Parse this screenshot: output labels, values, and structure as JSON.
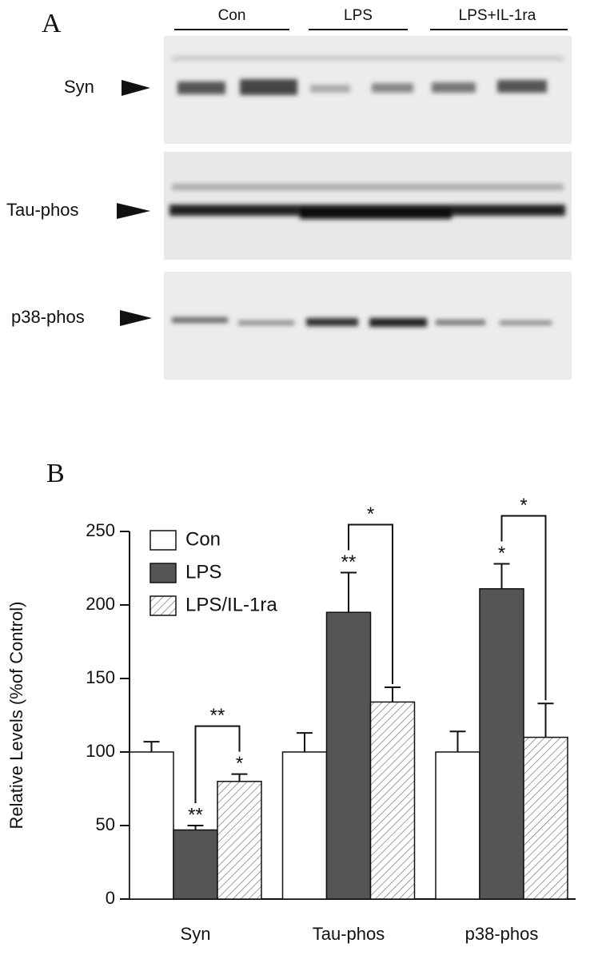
{
  "panel_a": {
    "label": "A",
    "groups": [
      "Con",
      "LPS",
      "LPS+IL-1ra"
    ],
    "rows": [
      "Syn",
      "Tau-phos",
      "p38-phos"
    ]
  },
  "chart_data": {
    "type": "bar",
    "panel_label": "B",
    "ylabel": "Relative Levels (%of Control)",
    "categories": [
      "Syn",
      "Tau-phos",
      "p38-phos"
    ],
    "series": [
      {
        "name": "Con",
        "color": "#ffffff",
        "hatch": false,
        "values": [
          100,
          100,
          100
        ],
        "errors": [
          7,
          13,
          14
        ],
        "significance": [
          null,
          null,
          null
        ]
      },
      {
        "name": "LPS",
        "color": "#555555",
        "hatch": false,
        "values": [
          47,
          195,
          211
        ],
        "errors": [
          3,
          27,
          17
        ],
        "significance": [
          "**",
          "**",
          "*"
        ]
      },
      {
        "name": "LPS/IL-1ra",
        "color": "#ffffff",
        "hatch": true,
        "values": [
          80,
          134,
          110
        ],
        "errors": [
          5,
          10,
          23
        ],
        "significance": [
          "*",
          null,
          null
        ]
      }
    ],
    "brackets": [
      "**",
      "*",
      "*"
    ],
    "ylim": [
      0,
      250
    ],
    "yticks": [
      0,
      50,
      100,
      150,
      200,
      250
    ],
    "grid": false,
    "legend": "top-left"
  }
}
